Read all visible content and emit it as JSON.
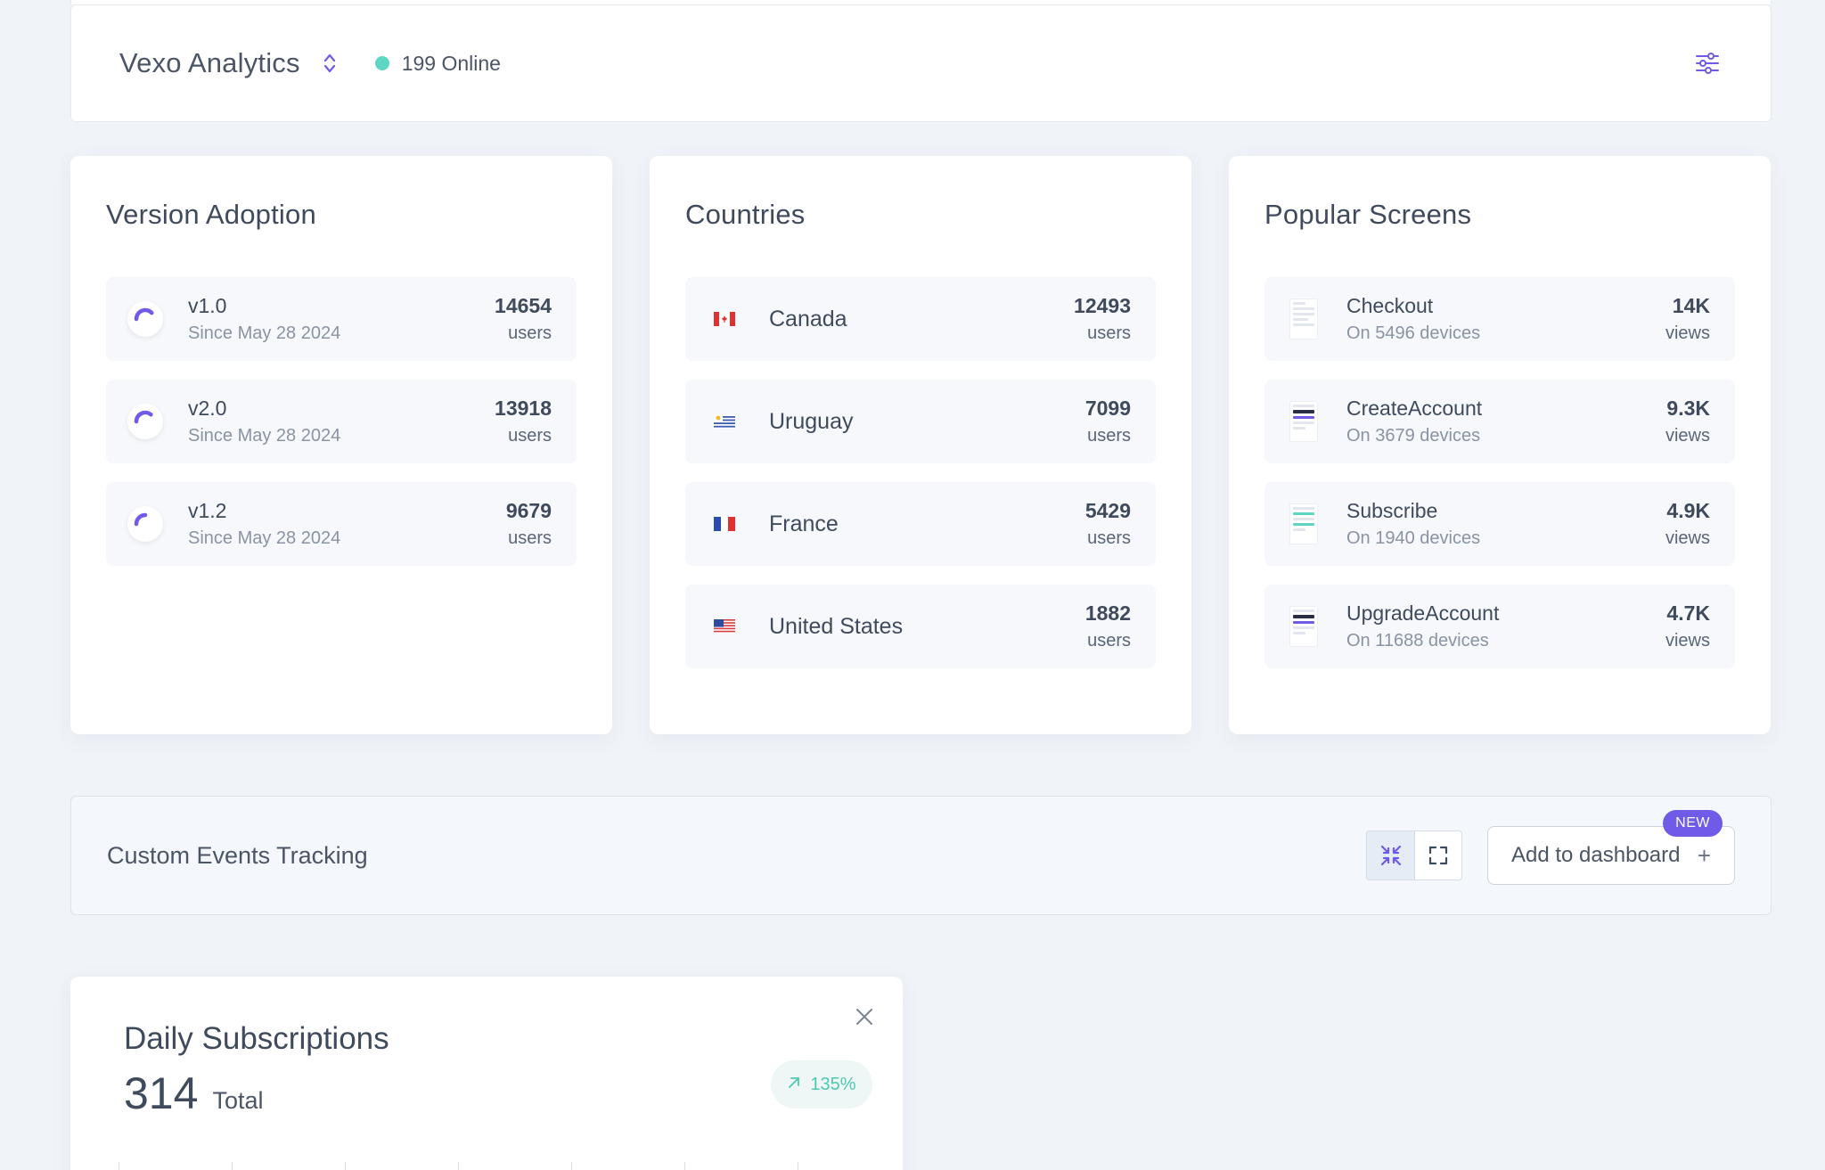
{
  "header": {
    "app_title": "Vexo Analytics",
    "online_text": "199 Online",
    "colors": {
      "online_dot": "#5fd6c4",
      "accent": "#6f5be8"
    }
  },
  "version_adoption": {
    "title": "Version Adoption",
    "items": [
      {
        "name": "v1.0",
        "since": "Since May 28 2024",
        "value": "14654",
        "unit": "users",
        "icon": "spinner-icon",
        "share": 0.38
      },
      {
        "name": "v2.0",
        "since": "Since May 28 2024",
        "value": "13918",
        "unit": "users",
        "icon": "spinner-icon",
        "share": 0.36
      },
      {
        "name": "v1.2",
        "since": "Since May 28 2024",
        "value": "9679",
        "unit": "users",
        "icon": "spinner-icon",
        "share": 0.25
      }
    ]
  },
  "countries": {
    "title": "Countries",
    "items": [
      {
        "name": "Canada",
        "value": "12493",
        "unit": "users",
        "icon": "canada-flag-icon"
      },
      {
        "name": "Uruguay",
        "value": "7099",
        "unit": "users",
        "icon": "uruguay-flag-icon"
      },
      {
        "name": "France",
        "value": "5429",
        "unit": "users",
        "icon": "france-flag-icon"
      },
      {
        "name": "United States",
        "value": "1882",
        "unit": "users",
        "icon": "us-flag-icon"
      }
    ]
  },
  "popular_screens": {
    "title": "Popular Screens",
    "items": [
      {
        "name": "Checkout",
        "devices": "On 5496 devices",
        "value": "14K",
        "unit": "views",
        "icon": "screen-thumbnail-icon"
      },
      {
        "name": "CreateAccount",
        "devices": "On 3679 devices",
        "value": "9.3K",
        "unit": "views",
        "icon": "screen-thumbnail-icon"
      },
      {
        "name": "Subscribe",
        "devices": "On 1940 devices",
        "value": "4.9K",
        "unit": "views",
        "icon": "screen-thumbnail-icon"
      },
      {
        "name": "UpgradeAccount",
        "devices": "On 11688 devices",
        "value": "4.7K",
        "unit": "views",
        "icon": "screen-thumbnail-icon"
      }
    ]
  },
  "custom_events": {
    "title": "Custom Events Tracking",
    "add_label": "Add to dashboard",
    "add_plus": "+",
    "new_badge": "NEW",
    "toggle_icons": [
      "collapse-icon",
      "expand-icon"
    ]
  },
  "daily_subscriptions": {
    "title": "Daily Subscriptions",
    "total_number": "314",
    "total_label": "Total",
    "trend": "135%",
    "trend_icon": "arrow-up-right-icon",
    "close_icon": "close-icon"
  }
}
